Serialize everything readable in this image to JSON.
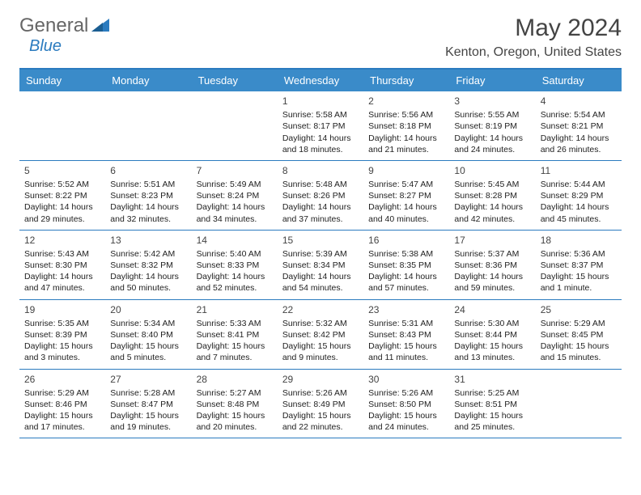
{
  "logo": {
    "text1": "General",
    "text2": "Blue"
  },
  "title": "May 2024",
  "location": "Kenton, Oregon, United States",
  "colors": {
    "header_bg": "#3a8bc9",
    "header_text": "#ffffff",
    "border": "#2b7bbf",
    "text": "#222222",
    "muted": "#555555"
  },
  "dow": [
    "Sunday",
    "Monday",
    "Tuesday",
    "Wednesday",
    "Thursday",
    "Friday",
    "Saturday"
  ],
  "weeks": [
    [
      {
        "n": "",
        "lines": []
      },
      {
        "n": "",
        "lines": []
      },
      {
        "n": "",
        "lines": []
      },
      {
        "n": "1",
        "lines": [
          "Sunrise: 5:58 AM",
          "Sunset: 8:17 PM",
          "Daylight: 14 hours and 18 minutes."
        ]
      },
      {
        "n": "2",
        "lines": [
          "Sunrise: 5:56 AM",
          "Sunset: 8:18 PM",
          "Daylight: 14 hours and 21 minutes."
        ]
      },
      {
        "n": "3",
        "lines": [
          "Sunrise: 5:55 AM",
          "Sunset: 8:19 PM",
          "Daylight: 14 hours and 24 minutes."
        ]
      },
      {
        "n": "4",
        "lines": [
          "Sunrise: 5:54 AM",
          "Sunset: 8:21 PM",
          "Daylight: 14 hours and 26 minutes."
        ]
      }
    ],
    [
      {
        "n": "5",
        "lines": [
          "Sunrise: 5:52 AM",
          "Sunset: 8:22 PM",
          "Daylight: 14 hours and 29 minutes."
        ]
      },
      {
        "n": "6",
        "lines": [
          "Sunrise: 5:51 AM",
          "Sunset: 8:23 PM",
          "Daylight: 14 hours and 32 minutes."
        ]
      },
      {
        "n": "7",
        "lines": [
          "Sunrise: 5:49 AM",
          "Sunset: 8:24 PM",
          "Daylight: 14 hours and 34 minutes."
        ]
      },
      {
        "n": "8",
        "lines": [
          "Sunrise: 5:48 AM",
          "Sunset: 8:26 PM",
          "Daylight: 14 hours and 37 minutes."
        ]
      },
      {
        "n": "9",
        "lines": [
          "Sunrise: 5:47 AM",
          "Sunset: 8:27 PM",
          "Daylight: 14 hours and 40 minutes."
        ]
      },
      {
        "n": "10",
        "lines": [
          "Sunrise: 5:45 AM",
          "Sunset: 8:28 PM",
          "Daylight: 14 hours and 42 minutes."
        ]
      },
      {
        "n": "11",
        "lines": [
          "Sunrise: 5:44 AM",
          "Sunset: 8:29 PM",
          "Daylight: 14 hours and 45 minutes."
        ]
      }
    ],
    [
      {
        "n": "12",
        "lines": [
          "Sunrise: 5:43 AM",
          "Sunset: 8:30 PM",
          "Daylight: 14 hours and 47 minutes."
        ]
      },
      {
        "n": "13",
        "lines": [
          "Sunrise: 5:42 AM",
          "Sunset: 8:32 PM",
          "Daylight: 14 hours and 50 minutes."
        ]
      },
      {
        "n": "14",
        "lines": [
          "Sunrise: 5:40 AM",
          "Sunset: 8:33 PM",
          "Daylight: 14 hours and 52 minutes."
        ]
      },
      {
        "n": "15",
        "lines": [
          "Sunrise: 5:39 AM",
          "Sunset: 8:34 PM",
          "Daylight: 14 hours and 54 minutes."
        ]
      },
      {
        "n": "16",
        "lines": [
          "Sunrise: 5:38 AM",
          "Sunset: 8:35 PM",
          "Daylight: 14 hours and 57 minutes."
        ]
      },
      {
        "n": "17",
        "lines": [
          "Sunrise: 5:37 AM",
          "Sunset: 8:36 PM",
          "Daylight: 14 hours and 59 minutes."
        ]
      },
      {
        "n": "18",
        "lines": [
          "Sunrise: 5:36 AM",
          "Sunset: 8:37 PM",
          "Daylight: 15 hours and 1 minute."
        ]
      }
    ],
    [
      {
        "n": "19",
        "lines": [
          "Sunrise: 5:35 AM",
          "Sunset: 8:39 PM",
          "Daylight: 15 hours and 3 minutes."
        ]
      },
      {
        "n": "20",
        "lines": [
          "Sunrise: 5:34 AM",
          "Sunset: 8:40 PM",
          "Daylight: 15 hours and 5 minutes."
        ]
      },
      {
        "n": "21",
        "lines": [
          "Sunrise: 5:33 AM",
          "Sunset: 8:41 PM",
          "Daylight: 15 hours and 7 minutes."
        ]
      },
      {
        "n": "22",
        "lines": [
          "Sunrise: 5:32 AM",
          "Sunset: 8:42 PM",
          "Daylight: 15 hours and 9 minutes."
        ]
      },
      {
        "n": "23",
        "lines": [
          "Sunrise: 5:31 AM",
          "Sunset: 8:43 PM",
          "Daylight: 15 hours and 11 minutes."
        ]
      },
      {
        "n": "24",
        "lines": [
          "Sunrise: 5:30 AM",
          "Sunset: 8:44 PM",
          "Daylight: 15 hours and 13 minutes."
        ]
      },
      {
        "n": "25",
        "lines": [
          "Sunrise: 5:29 AM",
          "Sunset: 8:45 PM",
          "Daylight: 15 hours and 15 minutes."
        ]
      }
    ],
    [
      {
        "n": "26",
        "lines": [
          "Sunrise: 5:29 AM",
          "Sunset: 8:46 PM",
          "Daylight: 15 hours and 17 minutes."
        ]
      },
      {
        "n": "27",
        "lines": [
          "Sunrise: 5:28 AM",
          "Sunset: 8:47 PM",
          "Daylight: 15 hours and 19 minutes."
        ]
      },
      {
        "n": "28",
        "lines": [
          "Sunrise: 5:27 AM",
          "Sunset: 8:48 PM",
          "Daylight: 15 hours and 20 minutes."
        ]
      },
      {
        "n": "29",
        "lines": [
          "Sunrise: 5:26 AM",
          "Sunset: 8:49 PM",
          "Daylight: 15 hours and 22 minutes."
        ]
      },
      {
        "n": "30",
        "lines": [
          "Sunrise: 5:26 AM",
          "Sunset: 8:50 PM",
          "Daylight: 15 hours and 24 minutes."
        ]
      },
      {
        "n": "31",
        "lines": [
          "Sunrise: 5:25 AM",
          "Sunset: 8:51 PM",
          "Daylight: 15 hours and 25 minutes."
        ]
      },
      {
        "n": "",
        "lines": []
      }
    ]
  ]
}
